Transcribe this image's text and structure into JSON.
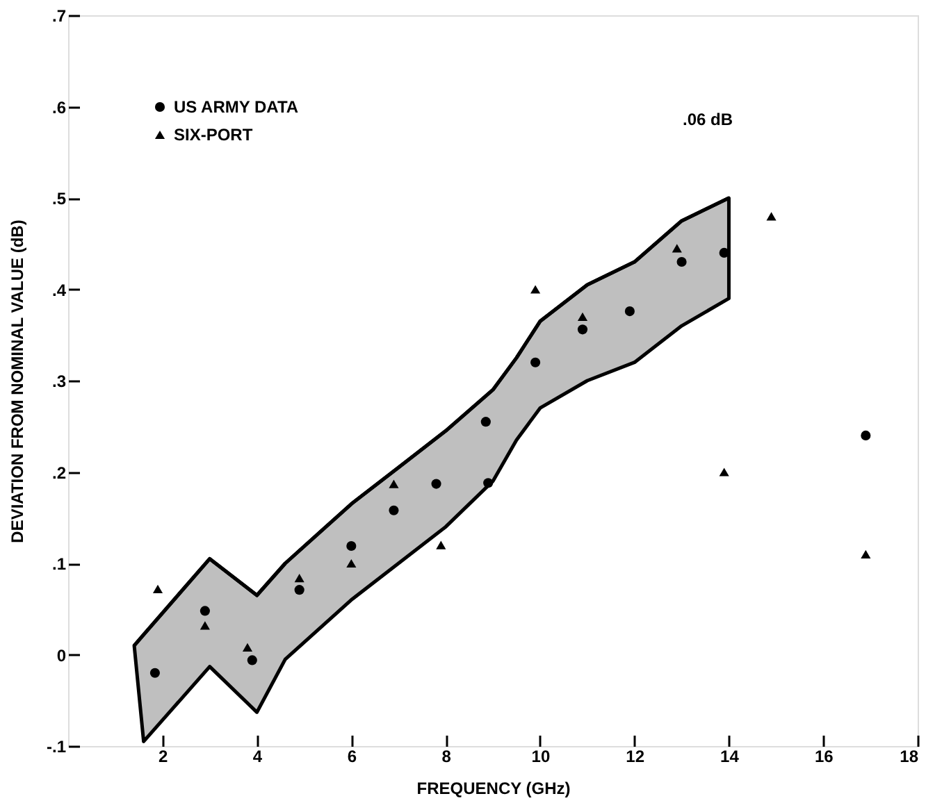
{
  "chart_data": {
    "type": "scatter",
    "xlabel": "FREQUENCY (GHz)",
    "ylabel": "DEVIATION FROM NOMINAL VALUE (dB)",
    "xlim": [
      0,
      18
    ],
    "xticks": [
      2,
      4,
      6,
      8,
      10,
      12,
      14,
      16,
      18
    ],
    "ylim": [
      -0.1,
      0.7
    ],
    "yticks": [
      {
        "value": -0.1,
        "label": "-.1"
      },
      0,
      {
        "value": 0.1,
        "label": ".1"
      },
      {
        "value": 0.2,
        "label": ".2"
      },
      {
        "value": 0.3,
        "label": ".3"
      },
      {
        "value": 0.4,
        "label": ".4"
      },
      {
        "value": 0.5,
        "label": ".5"
      },
      {
        "value": 0.6,
        "label": ".6"
      },
      {
        "value": 0.7,
        "label": ".7"
      }
    ],
    "grid": false,
    "legend": "top left",
    "annotations": [
      ".06 dB"
    ],
    "series": [
      {
        "type": "line",
        "marker": "none",
        "color": "#000000",
        "x": [
          1.4,
          1.6,
          3.0,
          4.0,
          4.6,
          6,
          7,
          8,
          9,
          9.5,
          10,
          11,
          12,
          13,
          14
        ],
        "values": [
          0.01,
          0.022,
          0.105,
          0.065,
          0.1,
          0.165,
          0.205,
          0.245,
          0.29,
          0.325,
          0.365,
          0.405,
          0.43,
          0.475,
          0.5
        ],
        "upper": [
          0.01,
          0.022,
          0.105,
          0.065,
          0.1,
          0.165,
          0.205,
          0.245,
          0.29,
          0.325,
          0.365,
          0.405,
          0.43,
          0.475,
          0.5
        ],
        "lower": [
          0.01,
          -0.095,
          -0.013,
          -0.063,
          -0.005,
          0.06,
          0.1,
          0.14,
          0.19,
          0.235,
          0.27,
          0.3,
          0.32,
          0.36,
          0.39
        ]
      },
      {
        "name": "US ARMY DATA",
        "marker": "circle",
        "color": "#000000",
        "x": [
          1.84,
          2.9,
          3.9,
          4.9,
          6.0,
          6.9,
          7.8,
          8.9,
          8.85,
          9.9,
          10.9,
          11.9,
          13.0,
          13.9,
          16.9
        ],
        "values": [
          -0.02,
          0.048,
          -0.006,
          0.071,
          0.119,
          0.158,
          0.187,
          0.188,
          0.255,
          0.32,
          0.356,
          0.376,
          0.43,
          0.44,
          0.24
        ]
      },
      {
        "name": "SIX-PORT",
        "marker": "triangle",
        "color": "#000000",
        "x": [
          1.9,
          2.9,
          3.8,
          4.9,
          6.0,
          6.9,
          7.9,
          9.9,
          10.9,
          12.9,
          14.9,
          13.9,
          16.9
        ],
        "values": [
          0.072,
          0.032,
          0.008,
          0.084,
          0.1,
          0.187,
          0.12,
          0.4,
          0.37,
          0.445,
          0.48,
          0.2,
          0.11
        ]
      }
    ]
  }
}
